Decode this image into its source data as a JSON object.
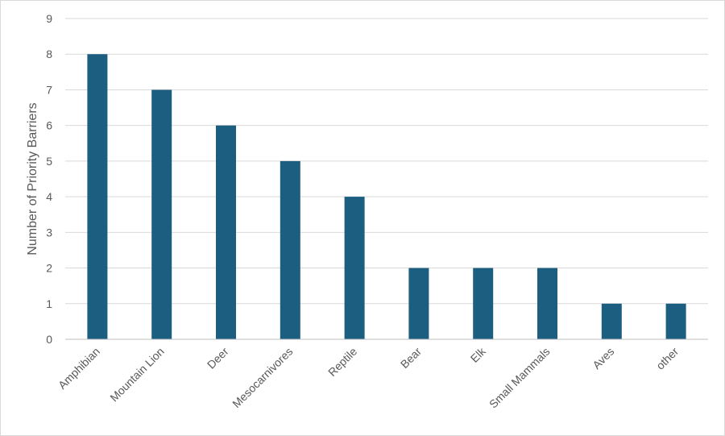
{
  "chart_data": {
    "type": "bar",
    "title": "",
    "xlabel": "",
    "ylabel": "Number of Priority Barriers",
    "categories": [
      "Amphibian",
      "Mountain Lion",
      "Deer",
      "Mesocarnivores",
      "Reptile",
      "Bear",
      "Elk",
      "Small Mammals",
      "Aves",
      "other"
    ],
    "values": [
      8,
      7,
      6,
      5,
      4,
      2,
      2,
      2,
      1,
      1
    ],
    "ylim": [
      0,
      9
    ],
    "yticks": [
      "0",
      "1",
      "2",
      "3",
      "4",
      "5",
      "6",
      "7",
      "8",
      "9"
    ],
    "grid": true,
    "legend": "none",
    "bar_color": "#1b5e80"
  }
}
